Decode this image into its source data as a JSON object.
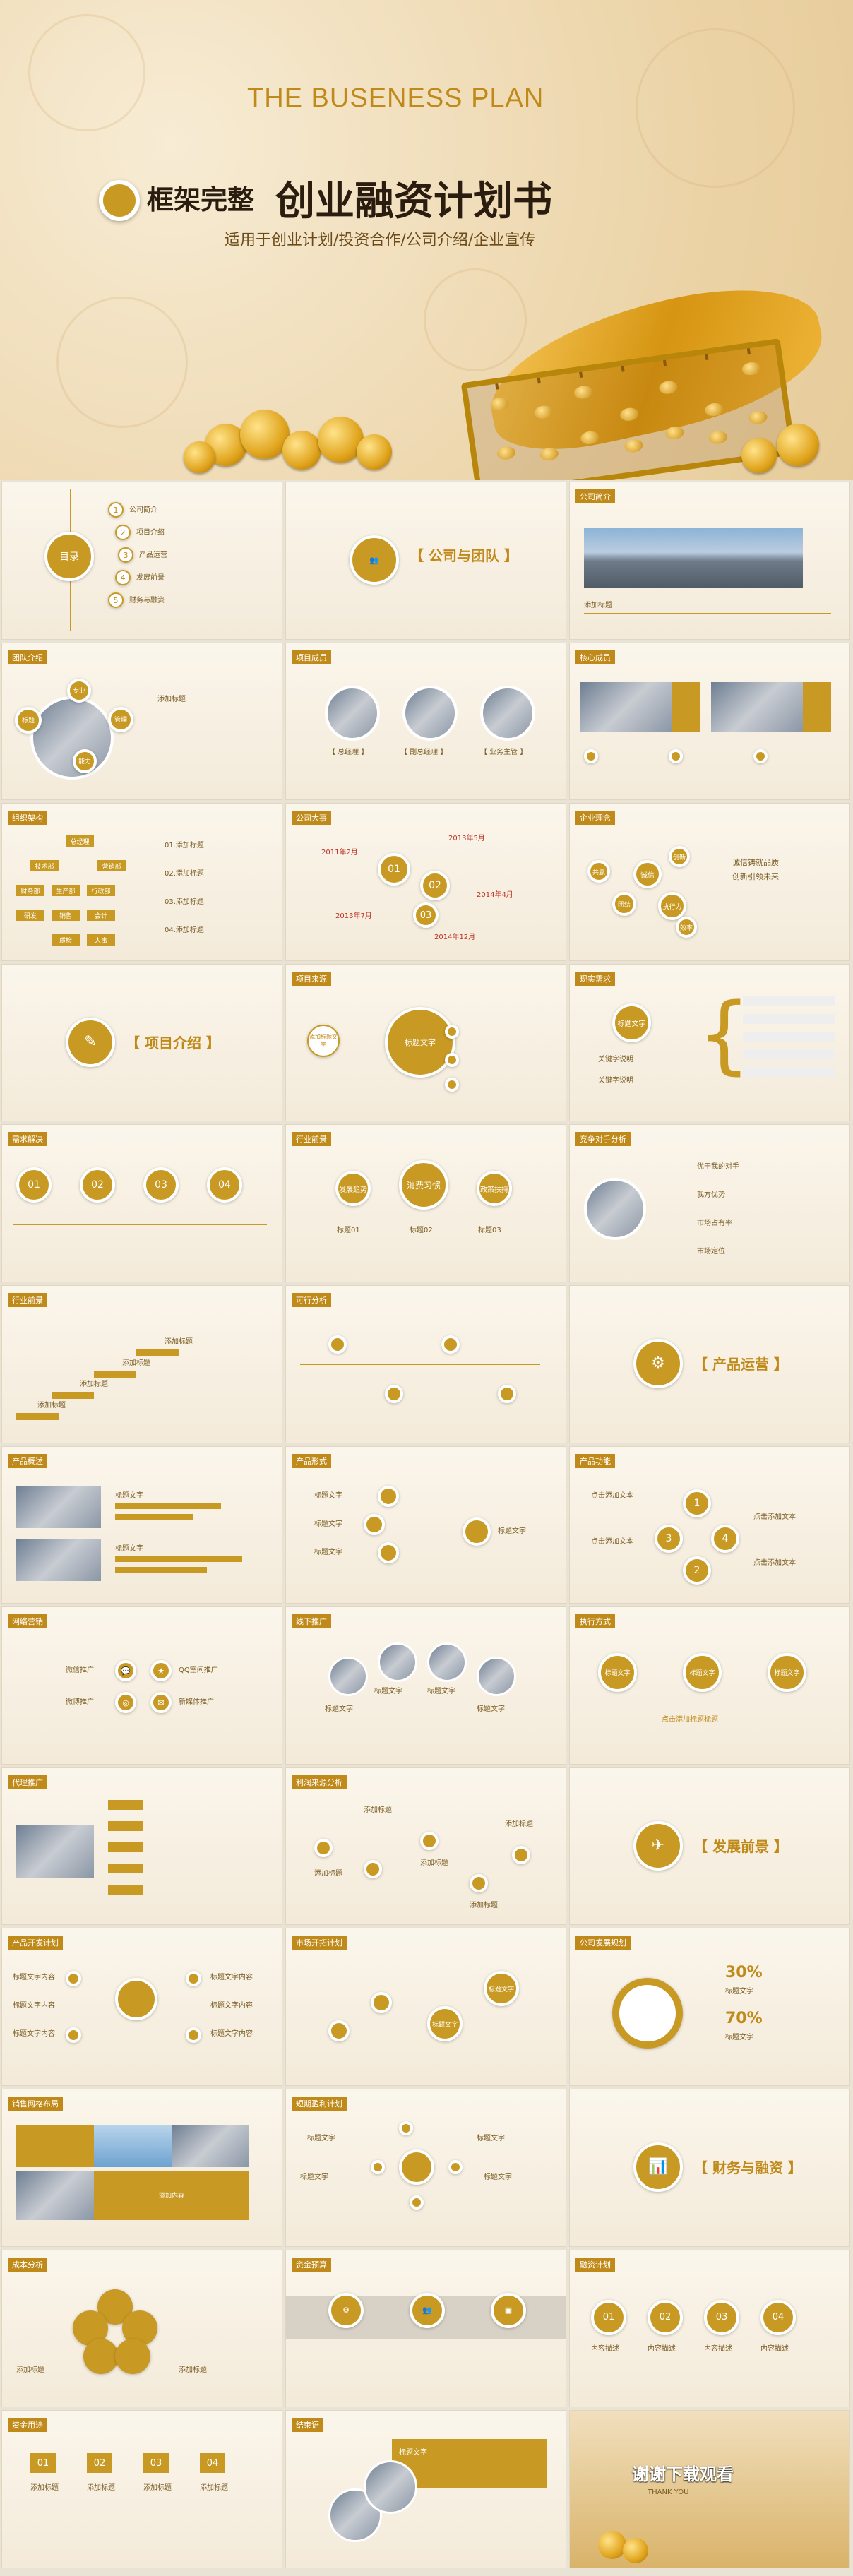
{
  "hero": {
    "eng_title": "THE BUSENESS PLAN",
    "badge_title": "框架完整",
    "main_title": "创业融资计划书",
    "subtitle": "适用于创业计划/投资合作/公司介绍/企业宣传"
  },
  "slides": {
    "toc": {
      "center": "目录",
      "items": [
        "公司简介",
        "项目介绍",
        "产品运营",
        "发展前景",
        "财务与融资"
      ],
      "nums": [
        "1",
        "2",
        "3",
        "4",
        "5"
      ]
    },
    "company_team_section": {
      "title": "【 公司与团队 】"
    },
    "company_intro": {
      "header": "公司简介",
      "caption": "添加标题"
    },
    "team_intro": {
      "header": "团队介绍",
      "labels": [
        "标题",
        "专业",
        "管理",
        "能力"
      ],
      "side": "添加标题"
    },
    "project_members": {
      "header": "项目成员",
      "names": [
        "【 总经理 】",
        "【 副总经理 】",
        "【 业务主管 】"
      ]
    },
    "core_members": {
      "header": "核心成员"
    },
    "org_structure": {
      "header": "组织架构",
      "boxes": [
        "总经理",
        "技术部",
        "营销部",
        "财务部",
        "生产部",
        "行政部",
        "研发",
        "销售",
        "会计",
        "质检",
        "人事"
      ],
      "notes": [
        "01.添加标题",
        "02.添加标题",
        "03.添加标题",
        "04.添加标题"
      ]
    },
    "milestones": {
      "header": "公司大事",
      "nums": [
        "01",
        "02",
        "03"
      ],
      "years": [
        "2013年5月",
        "2011年2月",
        "2014年4月",
        "2013年7月",
        "2014年12月"
      ]
    },
    "culture": {
      "header": "企业理念",
      "words": [
        "诚信",
        "执行力",
        "团结",
        "创新",
        "共赢",
        "效率"
      ],
      "slogan": "诚信铸就品质",
      "slogan2": "创新引领未来"
    },
    "project_section": {
      "title": "【 项目介绍 】"
    },
    "project_source": {
      "header": "项目来源",
      "left": "添加标题文字",
      "center": "标题文字"
    },
    "market_demand": {
      "header": "现实需求",
      "center": "标题文字",
      "items": [
        "关键字说明",
        "关键字说明"
      ]
    },
    "demand_solve": {
      "header": "需求解决",
      "nums": [
        "01",
        "02",
        "03",
        "04"
      ]
    },
    "industry_prospect": {
      "header": "行业前景",
      "circles": [
        "发展趋势",
        "消费习惯",
        "政策扶持"
      ],
      "labels": [
        "标题01",
        "标题02",
        "标题03"
      ]
    },
    "competitor": {
      "header": "竞争对手分析",
      "items": [
        "优于我的对手",
        "我方优势",
        "市场占有率",
        "市场定位"
      ]
    },
    "industry_prospect2": {
      "header": "行业前景",
      "labels": [
        "添加标题",
        "添加标题",
        "添加标题",
        "添加标题"
      ]
    },
    "feasibility": {
      "header": "可行分析"
    },
    "product_ops_section": {
      "title": "【 产品运营 】"
    },
    "product_overview": {
      "header": "产品概述",
      "labels": [
        "标题文字",
        "标题文字"
      ]
    },
    "product_form": {
      "header": "产品形式",
      "labels": [
        "标题文字",
        "标题文字",
        "标题文字",
        "标题文字"
      ]
    },
    "product_function": {
      "header": "产品功能",
      "labels": [
        "点击添加文本",
        "点击添加文本",
        "点击添加文本",
        "点击添加文本"
      ],
      "nums": [
        "1",
        "2",
        "3",
        "4"
      ]
    },
    "network_marketing": {
      "header": "网络营销",
      "labels": [
        "微信推广",
        "QQ空间推广",
        "微博推广",
        "新媒体推广"
      ]
    },
    "offline_promo": {
      "header": "线下推广",
      "labels": [
        "标题文字",
        "标题文字",
        "标题文字",
        "标题文字"
      ]
    },
    "execution": {
      "header": "执行方式",
      "circles": [
        "标题文字",
        "标题文字",
        "标题文字"
      ],
      "caption": "点击添加标题标题"
    },
    "agency_promo": {
      "header": "代理推广"
    },
    "profit_source": {
      "header": "利润来源分析",
      "labels": [
        "添加标题",
        "添加标题",
        "添加标题",
        "添加标题",
        "添加标题"
      ]
    },
    "prospect_section": {
      "title": "【 发展前景 】"
    },
    "product_dev": {
      "header": "产品开发计划",
      "labels": [
        "标题文字内容",
        "标题文字内容",
        "标题文字内容",
        "标题文字内容",
        "标题文字内容",
        "标题文字内容"
      ]
    },
    "market_dev": {
      "header": "市场开拓计划",
      "circles": [
        "标题文字",
        "标题文字"
      ]
    },
    "company_plan": {
      "header": "公司发展规划",
      "p1": "30%",
      "p2": "70%",
      "l1": "标题文字",
      "l2": "标题文字"
    },
    "sales_network": {
      "header": "销售网格布局",
      "label": "添加内容"
    },
    "short_profit": {
      "header": "短期盈利计划",
      "labels": [
        "标题文字",
        "标题文字",
        "标题文字",
        "标题文字"
      ]
    },
    "finance_section": {
      "title": "【 财务与融资 】"
    },
    "cost_analysis": {
      "header": "成本分析",
      "labels": [
        "添加标题",
        "添加标题"
      ]
    },
    "budget": {
      "header": "资金预算"
    },
    "financing_plan": {
      "header": "融资计划",
      "nums": [
        "01",
        "02",
        "03",
        "04"
      ],
      "labels": [
        "内容描述",
        "内容描述",
        "内容描述",
        "内容描述"
      ]
    },
    "fund_flow": {
      "header": "资金用途",
      "nums": [
        "01",
        "02",
        "03",
        "04"
      ],
      "labels": [
        "添加标题",
        "添加标题",
        "添加标题",
        "添加标题"
      ]
    },
    "conclusion": {
      "header": "结束语",
      "label": "标题文字"
    },
    "thanks": {
      "title": "谢谢下载观看",
      "sub": "THANK YOU"
    }
  },
  "colors": {
    "gold": "#c99a23",
    "dark": "#2a1d10"
  }
}
